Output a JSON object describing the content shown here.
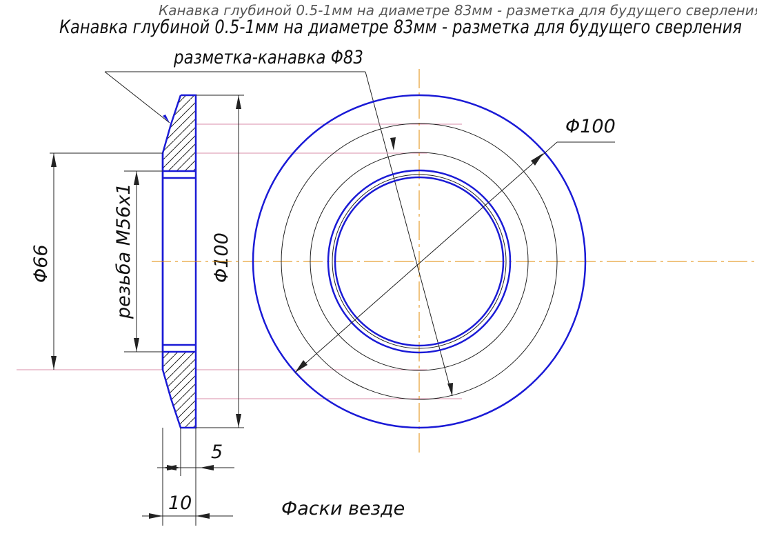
{
  "drawing": {
    "title": "Канавка глубиной 0.5-1мм на диаметре 83мм - разметка для будущего сверления",
    "groove_label": "разметка-канавка Φ83",
    "note": "Фаски везде",
    "dimensions": {
      "d66": "Φ66",
      "thread": "резьба М56х1",
      "d100_section": "Φ100",
      "d100_view": "Φ100",
      "width_5": "5",
      "width_10": "10"
    },
    "colors": {
      "outline": "#1a1ad6",
      "dimension": "#222222",
      "extension": "#d98ca8",
      "centerline": "#e08a00"
    }
  }
}
